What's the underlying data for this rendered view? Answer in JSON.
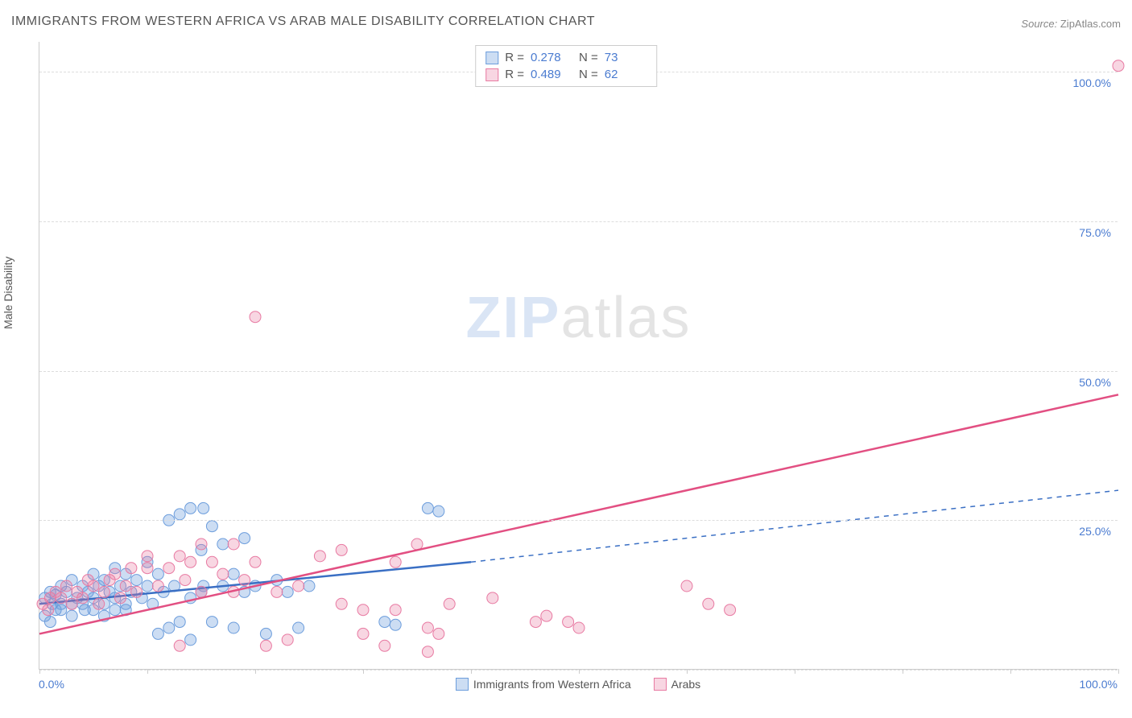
{
  "title": "IMMIGRANTS FROM WESTERN AFRICA VS ARAB MALE DISABILITY CORRELATION CHART",
  "source": {
    "label": "Source:",
    "value": "ZipAtlas.com"
  },
  "y_axis_label": "Male Disability",
  "watermark": {
    "zip": "ZIP",
    "atlas": "atlas"
  },
  "chart": {
    "type": "scatter",
    "xlim": [
      0,
      100
    ],
    "ylim": [
      0,
      105
    ],
    "x_ticks": [
      0,
      10,
      20,
      30,
      40,
      50,
      60,
      70,
      80,
      90,
      100
    ],
    "y_gridlines": [
      0,
      25,
      50,
      75,
      100
    ],
    "y_tick_labels": [
      "25.0%",
      "50.0%",
      "75.0%",
      "100.0%"
    ],
    "y_tick_values": [
      25,
      50,
      75,
      100
    ],
    "x_tick_labels": {
      "left": "0.0%",
      "right": "100.0%"
    },
    "background_color": "#ffffff",
    "grid_color": "#dddddd",
    "axis_color": "#cccccc",
    "tick_label_color": "#4a7bd0",
    "series": [
      {
        "name": "Immigrants from Western Africa",
        "color_fill": "rgba(108,157,220,0.35)",
        "color_stroke": "#6c9ddc",
        "line_color": "#3a6fc4",
        "line_solid": {
          "x1": 0,
          "y1": 11,
          "x2": 40,
          "y2": 18
        },
        "line_dashed": {
          "x1": 40,
          "y1": 18,
          "x2": 100,
          "y2": 30
        },
        "marker_radius": 7,
        "stats": {
          "R": "0.278",
          "N": "73"
        },
        "points": [
          [
            0.5,
            12
          ],
          [
            1,
            13
          ],
          [
            1.2,
            11
          ],
          [
            1.5,
            12.5
          ],
          [
            2,
            10
          ],
          [
            2,
            14
          ],
          [
            2.5,
            13
          ],
          [
            3,
            11
          ],
          [
            3,
            15
          ],
          [
            3.5,
            12
          ],
          [
            4,
            14
          ],
          [
            4.2,
            10
          ],
          [
            4.5,
            13
          ],
          [
            5,
            12
          ],
          [
            5,
            16
          ],
          [
            5.5,
            14
          ],
          [
            6,
            11
          ],
          [
            6,
            15
          ],
          [
            6.5,
            13
          ],
          [
            7,
            12
          ],
          [
            7,
            17
          ],
          [
            7.5,
            14
          ],
          [
            8,
            10
          ],
          [
            8,
            16
          ],
          [
            8.5,
            13
          ],
          [
            9,
            15
          ],
          [
            9.5,
            12
          ],
          [
            10,
            14
          ],
          [
            10,
            18
          ],
          [
            10.5,
            11
          ],
          [
            11,
            16
          ],
          [
            11,
            6
          ],
          [
            11.5,
            13
          ],
          [
            12,
            7
          ],
          [
            12,
            25
          ],
          [
            12.5,
            14
          ],
          [
            13,
            26
          ],
          [
            13,
            8
          ],
          [
            14,
            12
          ],
          [
            14,
            27
          ],
          [
            14,
            5
          ],
          [
            15,
            13
          ],
          [
            15,
            20
          ],
          [
            15.2,
            27
          ],
          [
            15.2,
            14
          ],
          [
            16,
            8
          ],
          [
            16,
            24
          ],
          [
            17,
            14
          ],
          [
            17,
            21
          ],
          [
            18,
            7
          ],
          [
            18,
            16
          ],
          [
            19,
            13
          ],
          [
            19,
            22
          ],
          [
            20,
            14
          ],
          [
            21,
            6
          ],
          [
            22,
            15
          ],
          [
            23,
            13
          ],
          [
            24,
            7
          ],
          [
            25,
            14
          ],
          [
            36,
            27
          ],
          [
            37,
            26.5
          ],
          [
            32,
            8
          ],
          [
            33,
            7.5
          ],
          [
            0.5,
            9
          ],
          [
            1,
            8
          ],
          [
            1.5,
            10
          ],
          [
            2,
            11
          ],
          [
            3,
            9
          ],
          [
            4,
            11
          ],
          [
            5,
            10
          ],
          [
            6,
            9
          ],
          [
            7,
            10
          ],
          [
            8,
            11
          ]
        ]
      },
      {
        "name": "Arabs",
        "color_fill": "rgba(232,120,160,0.30)",
        "color_stroke": "#e87aa2",
        "line_color": "#e24f82",
        "line_solid": {
          "x1": 0,
          "y1": 6,
          "x2": 100,
          "y2": 46
        },
        "line_dashed": null,
        "marker_radius": 7,
        "stats": {
          "R": "0.489",
          "N": "62"
        },
        "points": [
          [
            0.3,
            11
          ],
          [
            0.8,
            10
          ],
          [
            1,
            12
          ],
          [
            1.5,
            13
          ],
          [
            2,
            12
          ],
          [
            2.5,
            14
          ],
          [
            3,
            11
          ],
          [
            3.5,
            13
          ],
          [
            4,
            12
          ],
          [
            4.5,
            15
          ],
          [
            5,
            14
          ],
          [
            5.5,
            11
          ],
          [
            6,
            13
          ],
          [
            6.5,
            15
          ],
          [
            7,
            16
          ],
          [
            7.5,
            12
          ],
          [
            8,
            14
          ],
          [
            8.5,
            17
          ],
          [
            9,
            13
          ],
          [
            10,
            17
          ],
          [
            10,
            19
          ],
          [
            11,
            14
          ],
          [
            12,
            17
          ],
          [
            13,
            19
          ],
          [
            13.5,
            15
          ],
          [
            14,
            18
          ],
          [
            15,
            13
          ],
          [
            15,
            21
          ],
          [
            16,
            18
          ],
          [
            17,
            16
          ],
          [
            18,
            21
          ],
          [
            18,
            13
          ],
          [
            19,
            15
          ],
          [
            20,
            59
          ],
          [
            20,
            18
          ],
          [
            21,
            4
          ],
          [
            22,
            13
          ],
          [
            23,
            5
          ],
          [
            24,
            14
          ],
          [
            26,
            19
          ],
          [
            28,
            11
          ],
          [
            28,
            20
          ],
          [
            30,
            6
          ],
          [
            30,
            10
          ],
          [
            32,
            4
          ],
          [
            33,
            18
          ],
          [
            33,
            10
          ],
          [
            35,
            21
          ],
          [
            36,
            7
          ],
          [
            36,
            3
          ],
          [
            37,
            6
          ],
          [
            38,
            11
          ],
          [
            42,
            12
          ],
          [
            46,
            8
          ],
          [
            47,
            9
          ],
          [
            49,
            8
          ],
          [
            50,
            7
          ],
          [
            60,
            14
          ],
          [
            62,
            11
          ],
          [
            64,
            10
          ],
          [
            100,
            101
          ],
          [
            13,
            4
          ]
        ]
      }
    ]
  },
  "stats_box_labels": {
    "R": "R =",
    "N": "N ="
  },
  "bottom_legend": [
    {
      "label": "Immigrants from Western Africa",
      "fill": "rgba(108,157,220,0.35)",
      "stroke": "#6c9ddc"
    },
    {
      "label": "Arabs",
      "fill": "rgba(232,120,160,0.30)",
      "stroke": "#e87aa2"
    }
  ]
}
